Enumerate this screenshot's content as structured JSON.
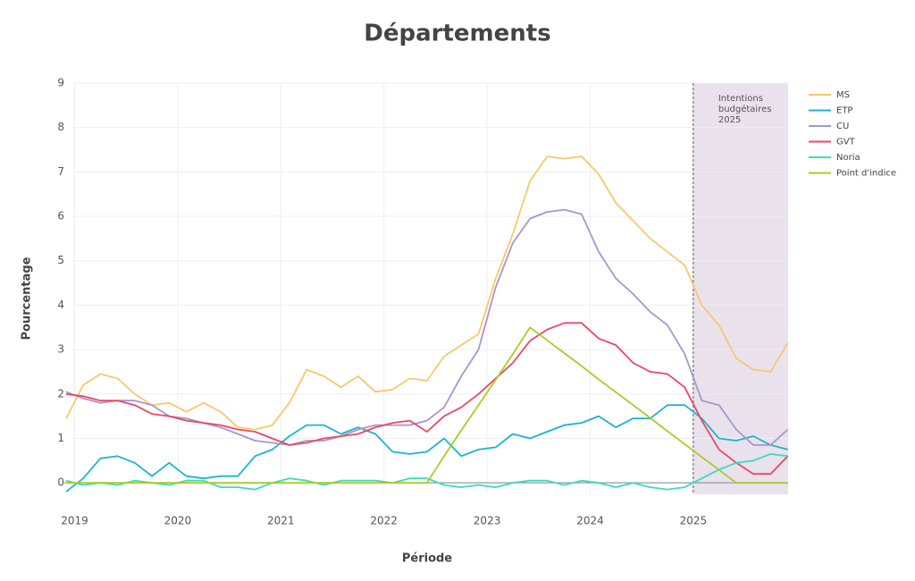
{
  "chart_data": {
    "type": "line",
    "title": "Départements",
    "xlabel": "Période",
    "ylabel": "Pourcentage",
    "x": [
      2018.917,
      2019.083,
      2019.25,
      2019.417,
      2019.583,
      2019.75,
      2019.917,
      2020.083,
      2020.25,
      2020.417,
      2020.583,
      2020.75,
      2020.917,
      2021.083,
      2021.25,
      2021.417,
      2021.583,
      2021.75,
      2021.917,
      2022.083,
      2022.25,
      2022.417,
      2022.583,
      2022.75,
      2022.917,
      2023.083,
      2023.25,
      2023.417,
      2023.583,
      2023.75,
      2023.917,
      2024.083,
      2024.25,
      2024.417,
      2024.583,
      2024.75,
      2024.917,
      2025.083,
      2025.25,
      2025.417,
      2025.583,
      2025.75,
      2025.917
    ],
    "xlim": [
      2018.9,
      2025.92
    ],
    "xticks": [
      2019,
      2020,
      2021,
      2022,
      2023,
      2024,
      2025
    ],
    "ylim": [
      -0.5,
      9
    ],
    "yticks": [
      0,
      1,
      2,
      3,
      4,
      5,
      6,
      7,
      8,
      9
    ],
    "grid": true,
    "legend": "right",
    "annotation": {
      "x": 2025,
      "lines": [
        "Intentions",
        "budgétaires",
        "2025"
      ]
    },
    "series": [
      {
        "name": "MS",
        "color": "#f7c96b",
        "values": [
          1.45,
          2.2,
          2.45,
          2.35,
          2.0,
          1.75,
          1.8,
          1.6,
          1.8,
          1.6,
          1.25,
          1.2,
          1.3,
          1.8,
          2.55,
          2.4,
          2.15,
          2.4,
          2.05,
          2.1,
          2.35,
          2.3,
          2.85,
          3.1,
          3.35,
          4.6,
          5.6,
          6.8,
          7.35,
          7.3,
          7.35,
          6.95,
          6.3,
          5.9,
          5.5,
          5.2,
          4.9,
          4.0,
          3.55,
          2.8,
          2.55,
          2.5,
          3.15
        ]
      },
      {
        "name": "ETP",
        "color": "#1ab5cf",
        "values": [
          -0.2,
          0.1,
          0.55,
          0.6,
          0.45,
          0.15,
          0.45,
          0.15,
          0.1,
          0.15,
          0.15,
          0.6,
          0.75,
          1.05,
          1.3,
          1.3,
          1.1,
          1.25,
          1.1,
          0.7,
          0.65,
          0.7,
          1.0,
          0.6,
          0.75,
          0.8,
          1.1,
          1.0,
          1.15,
          1.3,
          1.35,
          1.5,
          1.25,
          1.45,
          1.45,
          1.75,
          1.75,
          1.45,
          1.0,
          0.95,
          1.05,
          0.85,
          0.75
        ]
      },
      {
        "name": "CU",
        "color": "#a896cc",
        "values": [
          2.05,
          1.9,
          1.8,
          1.85,
          1.85,
          1.75,
          1.5,
          1.45,
          1.35,
          1.25,
          1.1,
          0.95,
          0.9,
          0.85,
          0.95,
          0.95,
          1.05,
          1.2,
          1.3,
          1.3,
          1.3,
          1.4,
          1.7,
          2.4,
          3.0,
          4.4,
          5.4,
          5.95,
          6.1,
          6.15,
          6.05,
          5.2,
          4.6,
          4.25,
          3.85,
          3.55,
          2.9,
          1.85,
          1.75,
          1.2,
          0.85,
          0.85,
          1.2
        ]
      },
      {
        "name": "GVT",
        "color": "#eb4766",
        "values": [
          2.0,
          1.95,
          1.85,
          1.85,
          1.75,
          1.55,
          1.5,
          1.4,
          1.35,
          1.3,
          1.2,
          1.15,
          1.0,
          0.85,
          0.9,
          1.0,
          1.05,
          1.1,
          1.25,
          1.35,
          1.4,
          1.15,
          1.5,
          1.7,
          2.0,
          2.35,
          2.7,
          3.2,
          3.45,
          3.6,
          3.6,
          3.25,
          3.1,
          2.7,
          2.5,
          2.45,
          2.15,
          1.4,
          0.75,
          0.45,
          0.2,
          0.2,
          0.6
        ]
      },
      {
        "name": "Noria",
        "color": "#3cdbc0",
        "values": [
          0.05,
          -0.05,
          0,
          -0.05,
          0.05,
          0,
          -0.05,
          0.05,
          0.05,
          -0.1,
          -0.1,
          -0.15,
          0,
          0.1,
          0.05,
          -0.05,
          0.05,
          0.05,
          0.05,
          0,
          0.1,
          0.1,
          -0.05,
          -0.1,
          -0.05,
          -0.1,
          0,
          0.05,
          0.05,
          -0.05,
          0.05,
          0,
          -0.1,
          0,
          -0.1,
          -0.15,
          -0.1,
          0.1,
          0.3,
          0.45,
          0.5,
          0.65,
          0.6
        ]
      },
      {
        "name": "Point d'indice",
        "color": "#a7cc2a",
        "values": [
          0,
          0,
          0,
          0,
          0,
          0,
          0,
          0,
          0,
          0,
          0,
          0,
          0,
          0,
          0,
          0,
          0,
          0,
          0,
          0,
          0,
          0,
          0.6,
          1.18,
          1.75,
          2.32,
          2.9,
          3.5,
          3.21,
          2.92,
          2.63,
          2.33,
          2.04,
          1.75,
          1.46,
          1.16,
          0.87,
          0.58,
          0.29,
          0,
          0,
          0,
          0
        ]
      }
    ]
  }
}
